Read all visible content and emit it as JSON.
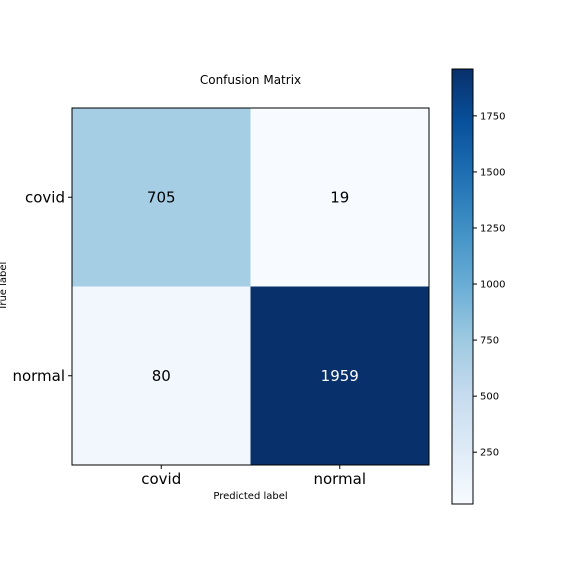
{
  "chart_data": {
    "type": "heatmap",
    "title": "Confusion Matrix",
    "xlabel": "Predicted label",
    "ylabel": "True label",
    "x_categories": [
      "covid",
      "normal"
    ],
    "y_categories": [
      "covid",
      "normal"
    ],
    "matrix": [
      [
        705,
        19
      ],
      [
        80,
        1959
      ]
    ],
    "colormap": "Blues",
    "color_range": [
      19,
      1959
    ],
    "colorbar": {
      "ticks": [
        250,
        500,
        750,
        1000,
        1250,
        1500,
        1750
      ],
      "range": [
        19,
        1959
      ]
    },
    "text_colors": {
      "dark_text": "#000000",
      "light_text": "#ffffff"
    }
  }
}
